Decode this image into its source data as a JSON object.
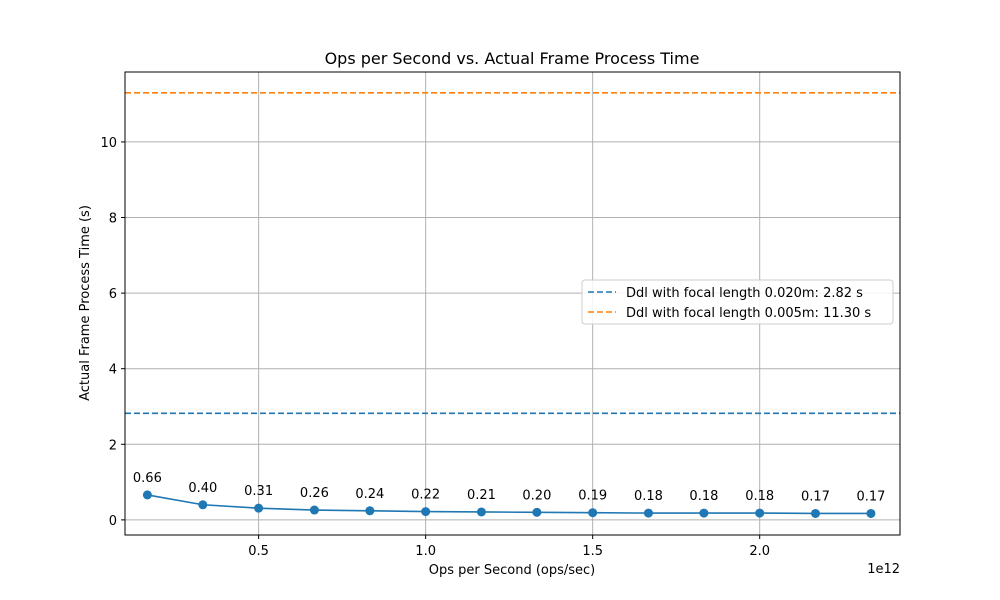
{
  "chart_data": {
    "type": "line",
    "title": "Ops per Second vs. Actual Frame Process Time",
    "xlabel": "Ops per Second (ops/sec)",
    "ylabel": "Actual Frame Process Time (s)",
    "x_offset_text": "1e12",
    "xlim": [
      0.1,
      2.42
    ],
    "ylim": [
      -0.4,
      11.85
    ],
    "x_ticks": [
      0.5,
      1.0,
      1.5,
      2.0
    ],
    "x_tick_labels": [
      "0.5",
      "1.0",
      "1.5",
      "2.0"
    ],
    "y_ticks": [
      0,
      2,
      4,
      6,
      8,
      10
    ],
    "y_tick_labels": [
      "0",
      "2",
      "4",
      "6",
      "8",
      "10"
    ],
    "grid": true,
    "legend_position": "center-right",
    "series": [
      {
        "color": "#1f77b4",
        "x": [
          0.167,
          0.333,
          0.5,
          0.667,
          0.833,
          1.0,
          1.167,
          1.333,
          1.5,
          1.667,
          1.833,
          2.0,
          2.167,
          2.333
        ],
        "values": [
          0.66,
          0.4,
          0.31,
          0.26,
          0.24,
          0.22,
          0.21,
          0.2,
          0.19,
          0.18,
          0.18,
          0.18,
          0.17,
          0.17
        ],
        "data_labels": [
          "0.66",
          "0.40",
          "0.31",
          "0.26",
          "0.24",
          "0.22",
          "0.21",
          "0.20",
          "0.19",
          "0.18",
          "0.18",
          "0.18",
          "0.17",
          "0.17"
        ]
      }
    ],
    "reference_lines": [
      {
        "name": "Ddl with focal length 0.020m: 2.82 s",
        "y": 2.82,
        "color": "#1f77b4",
        "style": "dashed"
      },
      {
        "name": "Ddl with focal length 0.005m: 11.30 s",
        "y": 11.3,
        "color": "#ff7f0e",
        "style": "dashed"
      }
    ]
  }
}
